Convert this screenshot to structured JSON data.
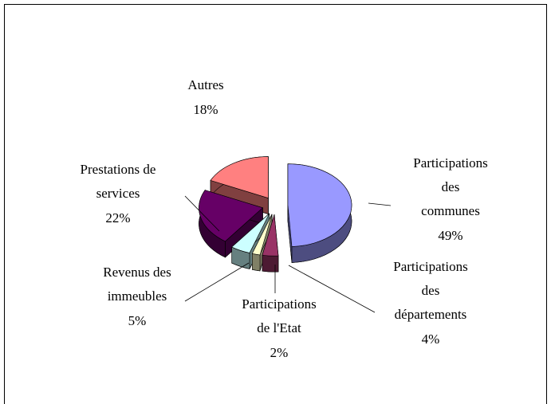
{
  "chart_data": {
    "type": "pie",
    "categories": [
      "Participations\ndes\ncommunes",
      "Participations\ndes\ndépartements",
      "Participations\nde l'Etat",
      "Revenus des\nimmeubles",
      "Prestations de\nservices",
      "Autres"
    ],
    "values": [
      49,
      4,
      2,
      5,
      22,
      18
    ],
    "value_labels": [
      "49%",
      "4%",
      "2%",
      "5%",
      "22%",
      "18%"
    ],
    "colors": [
      "#9999ff",
      "#993366",
      "#ffffcc",
      "#ccffff",
      "#660066",
      "#ff8080"
    ]
  }
}
